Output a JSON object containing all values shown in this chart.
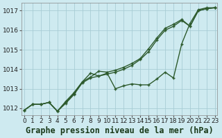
{
  "title": "Graphe pression niveau de la mer (hPa)",
  "bg_color": "#ceeaf0",
  "grid_color": "#a8cdd5",
  "line_color": "#2d5a2d",
  "x_values": [
    0,
    1,
    2,
    3,
    4,
    5,
    6,
    7,
    8,
    9,
    10,
    11,
    12,
    13,
    14,
    15,
    16,
    17,
    18,
    19,
    20,
    21,
    22,
    23
  ],
  "series": [
    [
      1011.9,
      1012.2,
      1012.2,
      1012.3,
      1011.85,
      1012.25,
      1012.7,
      1013.3,
      1013.55,
      1013.65,
      1013.75,
      1013.85,
      1014.0,
      1014.2,
      1014.5,
      1014.9,
      1015.5,
      1016.0,
      1016.2,
      1016.5,
      1016.2,
      1017.0,
      1017.1,
      1017.15
    ],
    [
      1011.9,
      1012.2,
      1012.2,
      1012.3,
      1011.85,
      1012.3,
      1012.75,
      1013.35,
      1013.6,
      1013.9,
      1013.85,
      1013.95,
      1014.1,
      1014.3,
      1014.55,
      1015.05,
      1015.6,
      1016.1,
      1016.3,
      1016.55,
      1016.2,
      1017.0,
      1017.1,
      1017.15
    ],
    [
      1011.9,
      1012.2,
      1012.2,
      1012.3,
      1011.85,
      1012.35,
      1012.8,
      1013.35,
      1013.8,
      1013.65,
      1013.8,
      1013.0,
      1013.15,
      1013.25,
      1013.2,
      1013.2,
      1013.5,
      1013.85,
      1013.55,
      1015.3,
      1016.35,
      1017.05,
      1017.15,
      1017.15
    ]
  ],
  "ylim": [
    1011.65,
    1017.4
  ],
  "yticks": [
    1012,
    1013,
    1014,
    1015,
    1016,
    1017
  ],
  "xlim": [
    -0.3,
    23.3
  ],
  "xticks": [
    0,
    1,
    2,
    3,
    4,
    5,
    6,
    7,
    8,
    9,
    10,
    11,
    12,
    13,
    14,
    15,
    16,
    17,
    18,
    19,
    20,
    21,
    22,
    23
  ],
  "title_fontsize": 8.5,
  "tick_fontsize": 6.5,
  "linewidth": 1.0,
  "markersize": 3.5
}
